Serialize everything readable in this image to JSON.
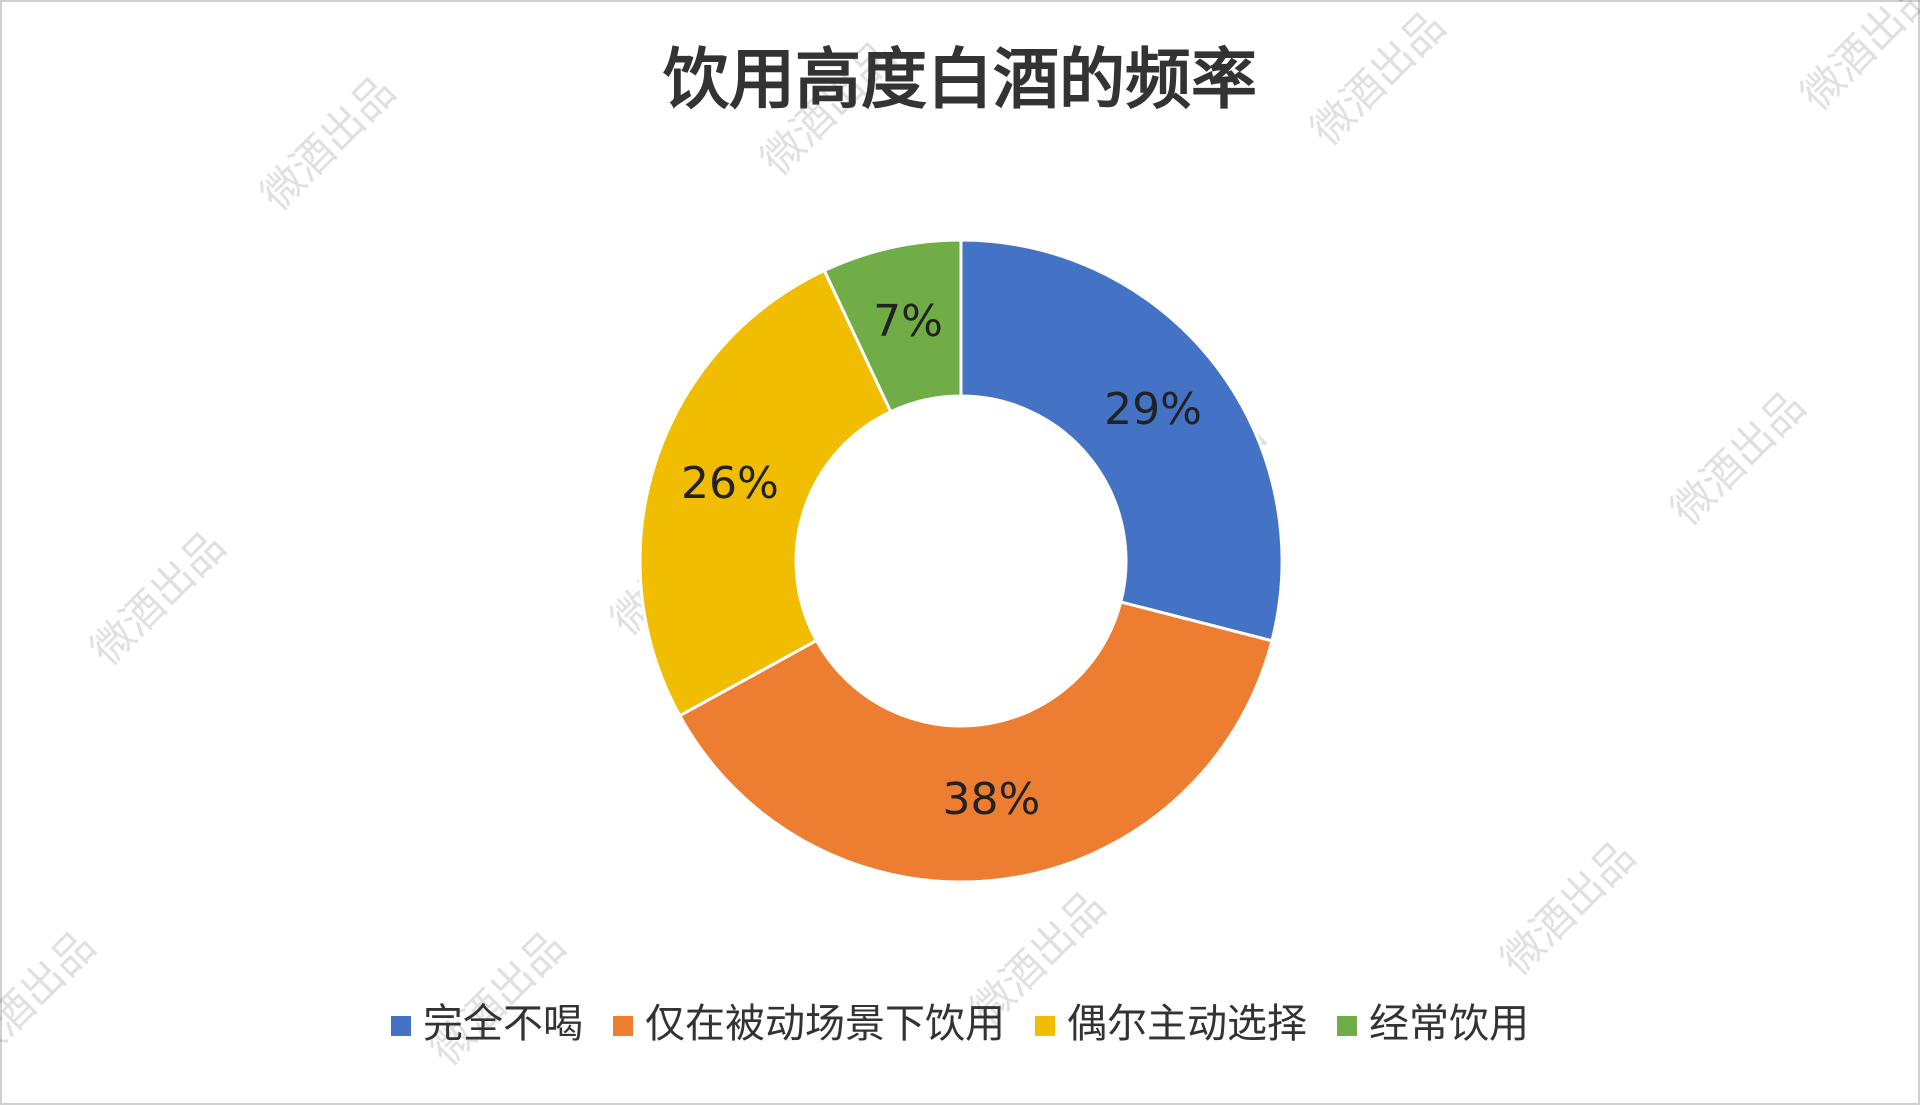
{
  "chart_data": {
    "type": "donut",
    "title": "饮用高度白酒的频率",
    "categories": [
      "完全不喝",
      "仅在被动场景下饮用",
      "偶尔主动选择",
      "经常饮用"
    ],
    "values": [
      29,
      38,
      26,
      7
    ],
    "value_labels": [
      "29%",
      "38%",
      "26%",
      "7%"
    ],
    "colors": [
      "#4472c4",
      "#ed7d31",
      "#f1bd00",
      "#70ad47"
    ],
    "legend": "bottom",
    "watermark": "微酒出品"
  }
}
